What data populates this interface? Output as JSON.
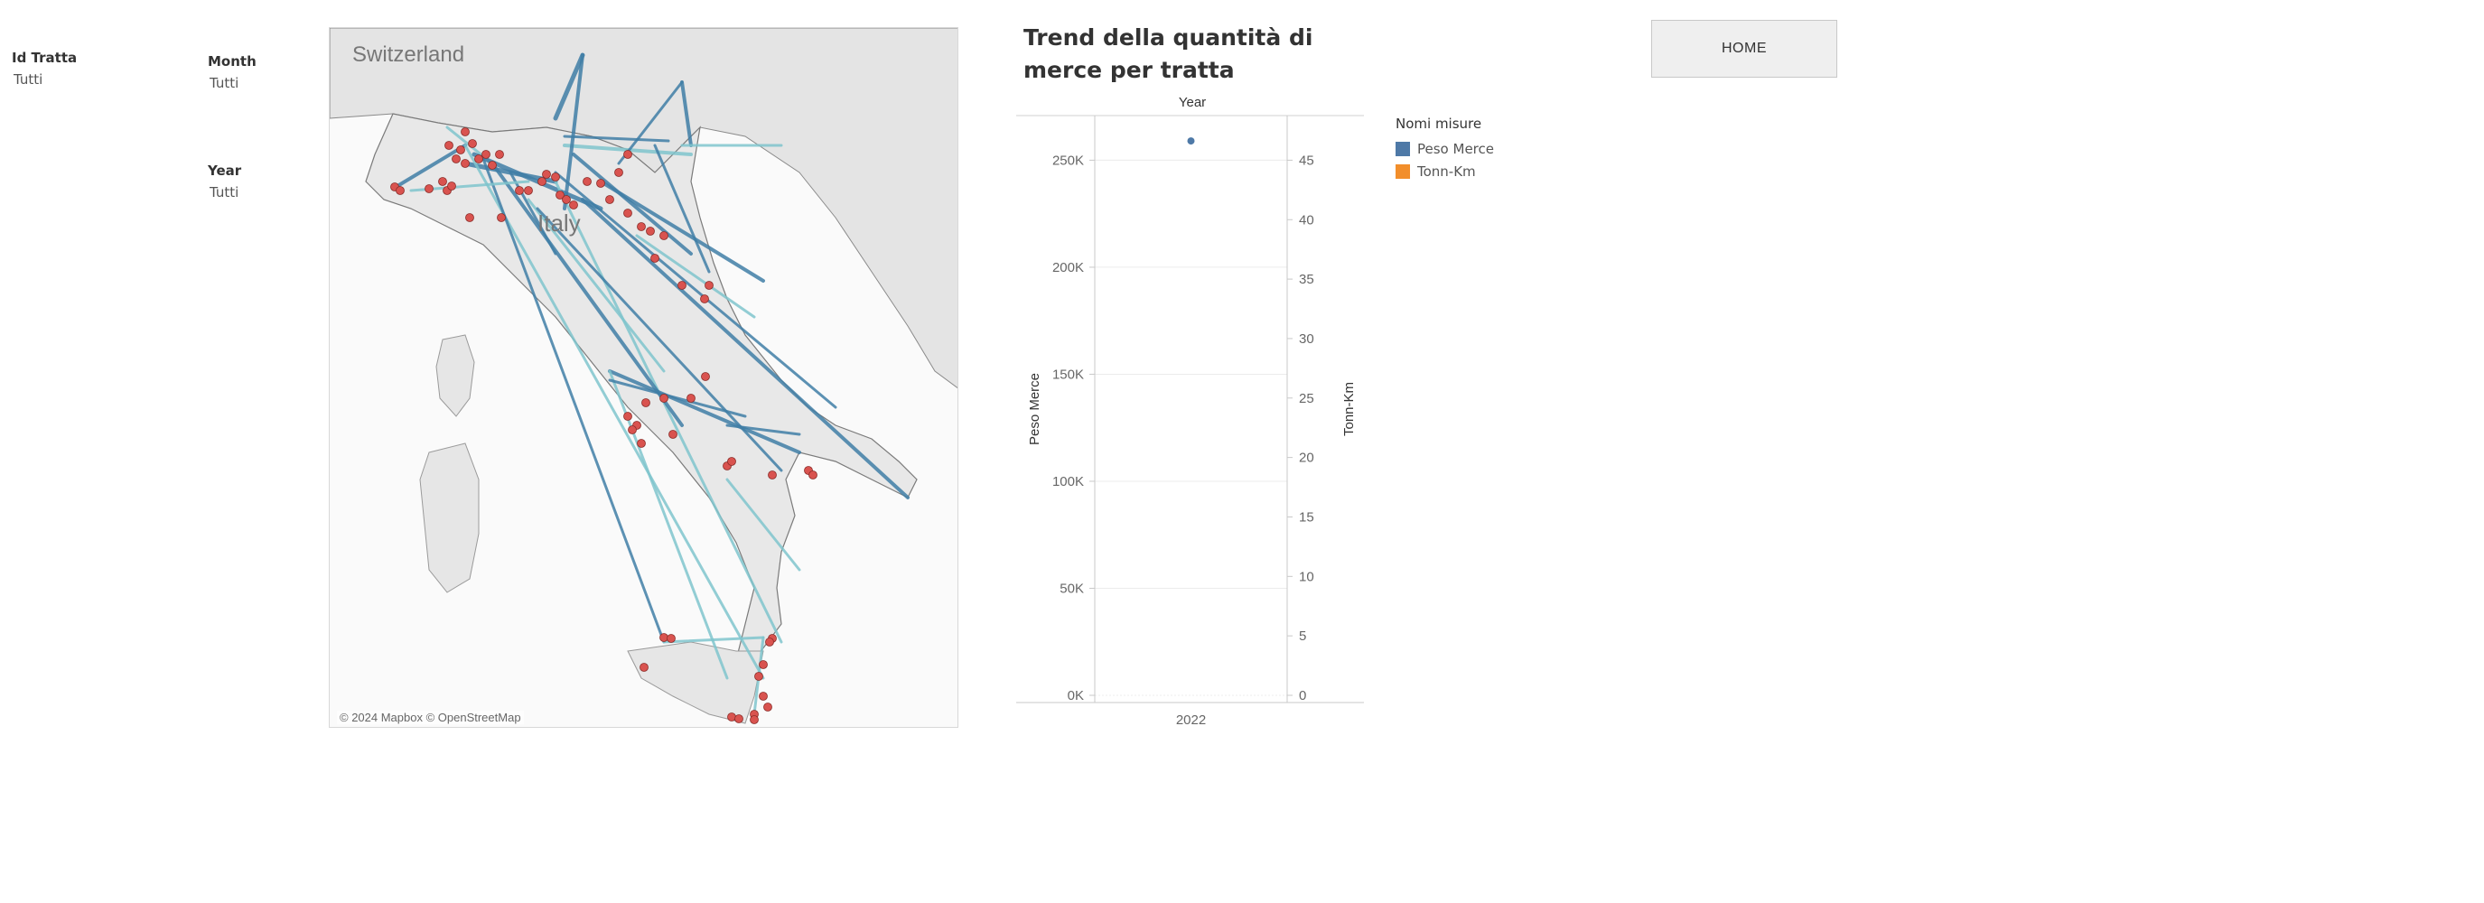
{
  "filters": {
    "id_tratta": {
      "label": "Id Tratta",
      "value": "Tutti"
    },
    "month": {
      "label": "Month",
      "value": "Tutti"
    },
    "year": {
      "label": "Year",
      "value": "Tutti"
    }
  },
  "map": {
    "country_labels": {
      "switzerland": "Switzerland",
      "italy": "Italy"
    },
    "credit": "© 2024 Mapbox © OpenStreetMap",
    "colors": {
      "route_dark": "#3f7ea6",
      "route_light": "#7fc4cc",
      "node": "#d9534f"
    }
  },
  "home_button": {
    "label": "HOME"
  },
  "legend": {
    "title": "Nomi misure",
    "items": [
      {
        "label": "Peso Merce",
        "color": "#4e79a7"
      },
      {
        "label": "Tonn-Km",
        "color": "#f28e2b"
      }
    ]
  },
  "chart_data": {
    "type": "scatter",
    "title": "Trend della quantità di merce per tratta",
    "column_header": "Year",
    "categories": [
      "2022"
    ],
    "ylabel_left": "Peso Merce",
    "ylabel_right": "Tonn-Km",
    "ylim_left": [
      0,
      270000
    ],
    "ylim_right": [
      0,
      48.6
    ],
    "yticks_left": [
      {
        "value": 0,
        "label": "0K"
      },
      {
        "value": 50000,
        "label": "50K"
      },
      {
        "value": 100000,
        "label": "100K"
      },
      {
        "value": 150000,
        "label": "150K"
      },
      {
        "value": 200000,
        "label": "200K"
      },
      {
        "value": 250000,
        "label": "250K"
      }
    ],
    "yticks_right": [
      {
        "value": 0,
        "label": "0"
      },
      {
        "value": 5,
        "label": "5"
      },
      {
        "value": 10,
        "label": "10"
      },
      {
        "value": 15,
        "label": "15"
      },
      {
        "value": 20,
        "label": "20"
      },
      {
        "value": 25,
        "label": "25"
      },
      {
        "value": 30,
        "label": "30"
      },
      {
        "value": 35,
        "label": "35"
      },
      {
        "value": 40,
        "label": "40"
      },
      {
        "value": 45,
        "label": "45"
      }
    ],
    "series": [
      {
        "name": "Peso Merce",
        "axis": "left",
        "color": "#4e79a7",
        "values": [
          259000
        ]
      }
    ],
    "grid": true,
    "legend_position": "right"
  }
}
